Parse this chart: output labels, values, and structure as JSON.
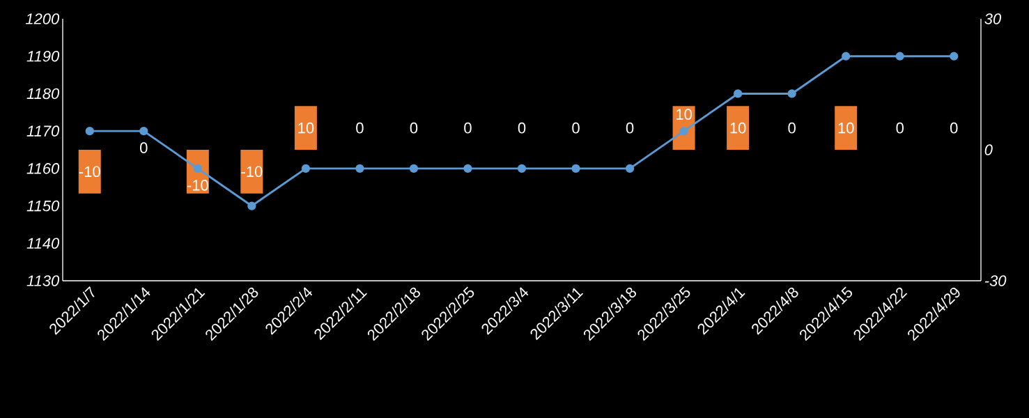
{
  "chart_data": {
    "type": "line",
    "categories": [
      "2022/1/7",
      "2022/1/14",
      "2022/1/21",
      "2022/1/28",
      "2022/2/4",
      "2022/2/11",
      "2022/2/18",
      "2022/2/25",
      "2022/3/4",
      "2022/3/11",
      "2022/3/18",
      "2022/3/25",
      "2022/4/1",
      "2022/4/8",
      "2022/4/15",
      "2022/4/22",
      "2022/4/29"
    ],
    "series": [
      {
        "type": "bar",
        "axis": "y2",
        "color": "#ed7d31",
        "values": [
          -10,
          0,
          -10,
          -10,
          10,
          0,
          0,
          0,
          0,
          0,
          0,
          10,
          10,
          0,
          10,
          0,
          0
        ],
        "value_labels": [
          "-10",
          "0",
          "-10",
          "-10",
          "10",
          "0",
          "0",
          "0",
          "0",
          "0",
          "0",
          "10",
          "10",
          "0",
          "10",
          "0",
          "0"
        ]
      },
      {
        "color": "#5b9bd5",
        "values": [
          1170,
          1170,
          1160,
          1150,
          1160,
          1160,
          1160,
          1160,
          1160,
          1160,
          1160,
          1170,
          1180,
          1180,
          1190,
          1190,
          1190
        ]
      }
    ],
    "ylim": [
      1130,
      1200
    ],
    "yticks": [
      1130,
      1140,
      1150,
      1160,
      1170,
      1180,
      1190,
      1200
    ],
    "y2lim": [
      -30,
      30
    ],
    "y2ticks": [
      -30,
      0,
      30
    ],
    "marker": "circle",
    "grid": false
  }
}
